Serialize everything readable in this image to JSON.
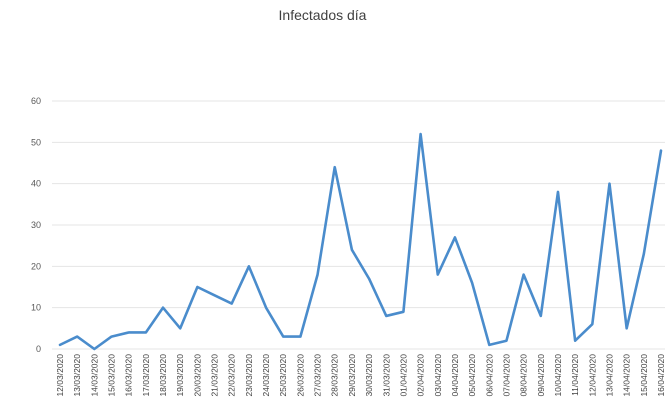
{
  "chart_data": {
    "type": "line",
    "title": "Infectados día",
    "xlabel": "",
    "ylabel": "",
    "ylim": [
      0,
      60
    ],
    "yticks": [
      "0",
      "10",
      "20",
      "30",
      "40",
      "50",
      "60"
    ],
    "grid": true,
    "line_color": "#4a8ccc",
    "categories": [
      "12/03/2020",
      "13/03/2020",
      "14/03/2020",
      "15/03/2020",
      "16/03/2020",
      "17/03/2020",
      "18/03/2020",
      "19/03/2020",
      "20/03/2020",
      "21/03/2020",
      "22/03/2020",
      "23/03/2020",
      "24/03/2020",
      "25/03/2020",
      "26/03/2020",
      "27/03/2020",
      "28/03/2020",
      "29/03/2020",
      "30/03/2020",
      "31/03/2020",
      "01/04/2020",
      "02/04/2020",
      "03/04/2020",
      "04/04/2020",
      "05/04/2020",
      "06/04/2020",
      "07/04/2020",
      "08/04/2020",
      "09/04/2020",
      "10/04/2020",
      "11/04/2020",
      "12/04/2020",
      "13/04/2020",
      "14/04/2020",
      "15/04/2020",
      "16/04/2020"
    ],
    "values": [
      1,
      3,
      0,
      3,
      4,
      4,
      10,
      5,
      15,
      13,
      11,
      20,
      10,
      3,
      3,
      18,
      44,
      24,
      17,
      8,
      9,
      52,
      18,
      27,
      16,
      1,
      2,
      18,
      8,
      38,
      2,
      6,
      40,
      5,
      23,
      48
    ]
  }
}
